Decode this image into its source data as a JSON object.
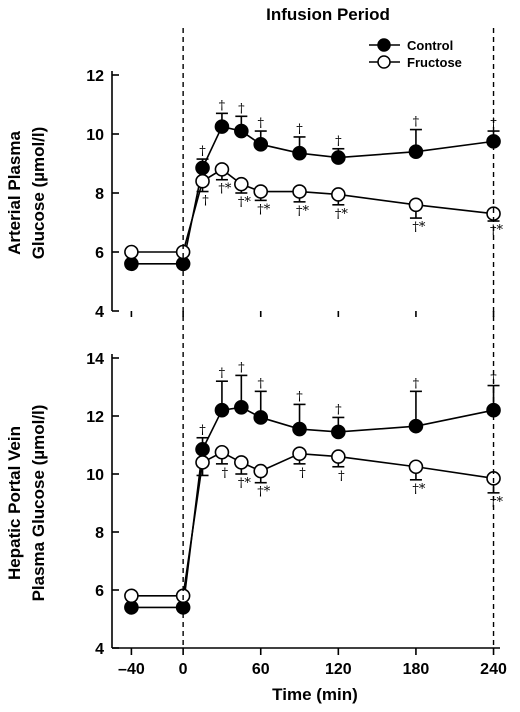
{
  "chart_data": [
    {
      "type": "line",
      "title": "Infusion Period",
      "ylabel_line1": "Arterial Plasma",
      "ylabel_line2": "Glucose (µmol/l)",
      "xlim": [
        -55,
        245
      ],
      "ylim": [
        4,
        12
      ],
      "yticks": [
        4,
        6,
        8,
        10,
        12
      ],
      "infusion_markers": [
        0,
        240
      ],
      "legend": {
        "position": "top-right"
      },
      "series": [
        {
          "name": "Control",
          "marker": "filled-circle",
          "x": [
            -40,
            0,
            15,
            30,
            45,
            60,
            90,
            120,
            180,
            240
          ],
          "y": [
            5.6,
            5.6,
            8.85,
            10.25,
            10.1,
            9.65,
            9.35,
            9.2,
            9.4,
            9.75
          ],
          "err": [
            0,
            0,
            0.3,
            0.45,
            0.5,
            0.45,
            0.55,
            0.3,
            0.75,
            0.35
          ],
          "err_dir": "up",
          "annotations": [
            "",
            "",
            "†",
            "†",
            "†",
            "†",
            "†",
            "†",
            "†",
            "†"
          ]
        },
        {
          "name": "Fructose",
          "marker": "open-circle",
          "x": [
            -40,
            0,
            15,
            30,
            45,
            60,
            90,
            120,
            180,
            240
          ],
          "y": [
            6.0,
            6.0,
            8.4,
            8.8,
            8.3,
            8.05,
            8.05,
            7.95,
            7.6,
            7.3
          ],
          "err": [
            0,
            0,
            0.35,
            0.35,
            0.3,
            0.3,
            0.35,
            0.35,
            0.45,
            0.25
          ],
          "err_dir": "down",
          "annotations": [
            "",
            "",
            "†",
            "†*",
            "†*",
            "†*",
            "†*",
            "†*",
            "†*",
            "†*"
          ]
        }
      ]
    },
    {
      "type": "line",
      "ylabel_line1": "Hepatic Portal Vein",
      "ylabel_line2": "Plasma Glucose (µmol/l)",
      "xlabel": "Time (min)",
      "xlim": [
        -55,
        245
      ],
      "ylim": [
        4,
        14
      ],
      "yticks": [
        4,
        6,
        8,
        10,
        12,
        14
      ],
      "xticks": [
        -40,
        0,
        60,
        120,
        180,
        240
      ],
      "infusion_markers": [
        0,
        240
      ],
      "series": [
        {
          "name": "Control",
          "marker": "filled-circle",
          "x": [
            -40,
            0,
            15,
            30,
            45,
            60,
            90,
            120,
            180,
            240
          ],
          "y": [
            5.4,
            5.4,
            10.85,
            12.2,
            12.3,
            11.95,
            11.55,
            11.45,
            11.65,
            12.2
          ],
          "err": [
            0,
            0,
            0.4,
            1.0,
            1.1,
            0.9,
            0.85,
            0.5,
            1.2,
            0.85
          ],
          "err_dir": "up",
          "annotations": [
            "",
            "",
            "†",
            "†",
            "†",
            "†",
            "†",
            "†",
            "†",
            "†"
          ]
        },
        {
          "name": "Fructose",
          "marker": "open-circle",
          "x": [
            -40,
            0,
            15,
            30,
            45,
            60,
            90,
            120,
            180,
            240
          ],
          "y": [
            5.8,
            5.8,
            10.4,
            10.75,
            10.4,
            10.1,
            10.7,
            10.6,
            10.25,
            9.85
          ],
          "err": [
            0,
            0,
            0.45,
            0.4,
            0.4,
            0.4,
            0.35,
            0.35,
            0.45,
            0.5
          ],
          "err_dir": "down",
          "annotations": [
            "",
            "",
            "",
            "†",
            "†*",
            "†*",
            "†",
            "†",
            "†*",
            "†*"
          ]
        }
      ]
    }
  ]
}
